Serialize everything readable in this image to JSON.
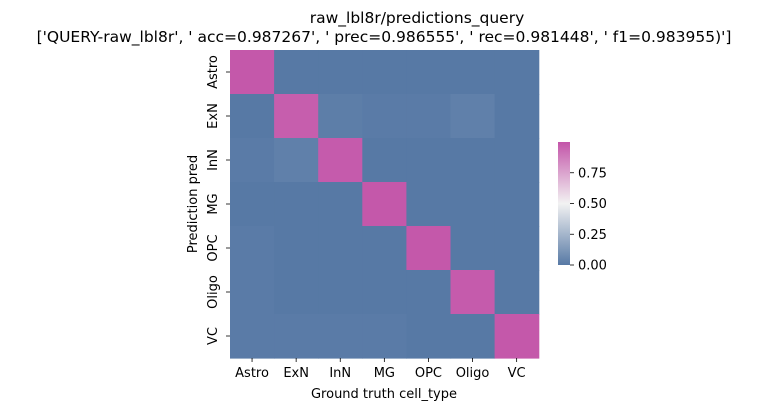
{
  "chart_data": {
    "type": "heatmap",
    "title": "raw_lbl8r/predictions_query",
    "subtitle": "['QUERY-raw_lbl8r', ' acc=0.987267', '  prec=0.986555', ' rec=0.981448', ' f1=0.983955)']",
    "xlabel": "Ground truth cell_type",
    "ylabel": "Prediction pred",
    "x_categories": [
      "Astro",
      "ExN",
      "InN",
      "MG",
      "OPC",
      "Oligo",
      "VC"
    ],
    "y_categories": [
      "Astro",
      "ExN",
      "InN",
      "MG",
      "OPC",
      "Oligo",
      "VC"
    ],
    "values": [
      [
        0.99,
        0.0,
        0.0,
        0.0,
        0.0,
        0.0,
        0.0
      ],
      [
        0.0,
        0.97,
        0.02,
        0.01,
        0.01,
        0.03,
        0.0
      ],
      [
        0.01,
        0.03,
        0.98,
        0.0,
        0.0,
        0.0,
        0.0
      ],
      [
        0.0,
        0.0,
        0.0,
        0.99,
        0.0,
        0.0,
        0.0
      ],
      [
        0.01,
        0.0,
        0.0,
        0.0,
        0.99,
        0.0,
        0.0
      ],
      [
        0.01,
        0.0,
        0.0,
        0.0,
        0.0,
        0.98,
        0.0
      ],
      [
        0.01,
        0.01,
        0.01,
        0.01,
        0.0,
        0.0,
        0.99
      ]
    ],
    "colorbar": {
      "ticks": [
        0.0,
        0.25,
        0.5,
        0.75
      ],
      "tick_labels": [
        "0.00",
        "0.25",
        "0.50",
        "0.75"
      ],
      "range": [
        0.0,
        1.0
      ]
    },
    "colormap": {
      "low": "#5779a5",
      "mid": "#f2f2f2",
      "high": "#c355a9"
    }
  }
}
